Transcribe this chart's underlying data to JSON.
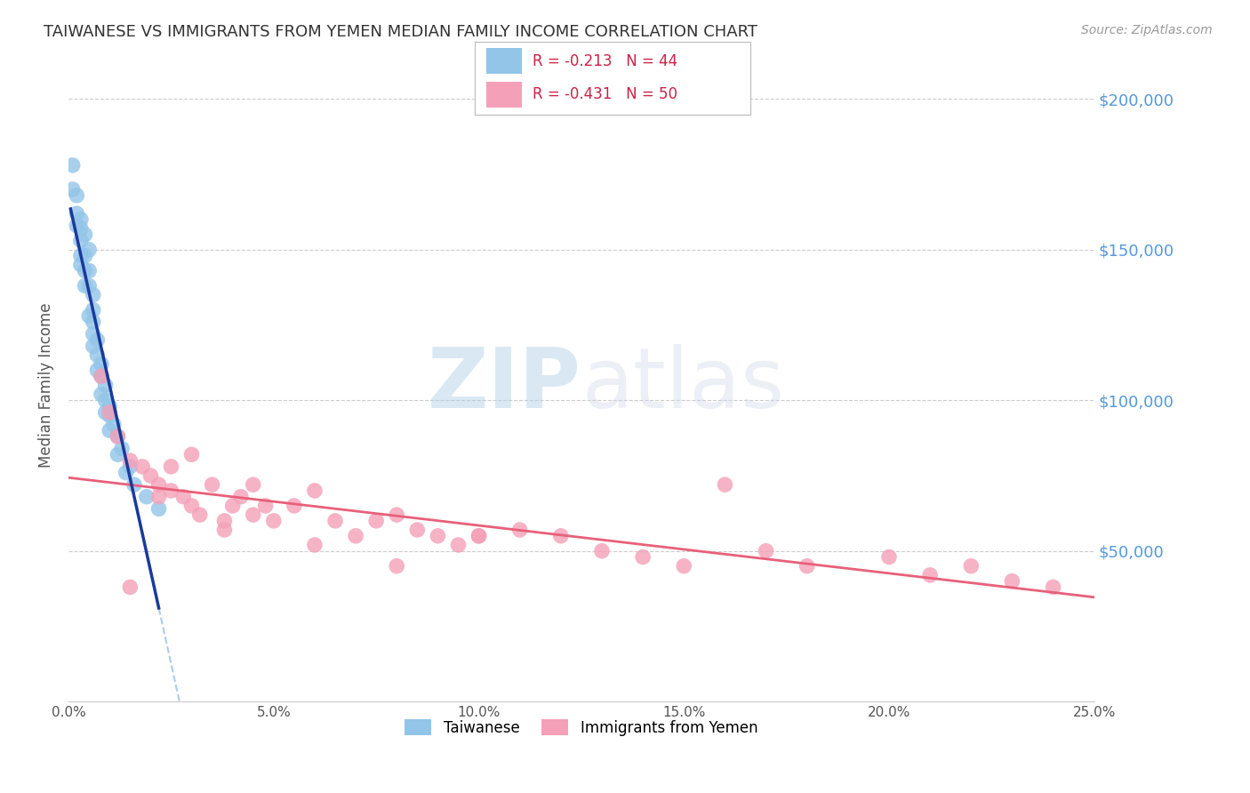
{
  "title": "TAIWANESE VS IMMIGRANTS FROM YEMEN MEDIAN FAMILY INCOME CORRELATION CHART",
  "source": "Source: ZipAtlas.com",
  "ylabel": "Median Family Income",
  "xlim": [
    0.0,
    0.25
  ],
  "ylim": [
    0,
    210000
  ],
  "xticks": [
    0.0,
    0.05,
    0.1,
    0.15,
    0.2,
    0.25
  ],
  "xticklabels": [
    "0.0%",
    "5.0%",
    "10.0%",
    "15.0%",
    "20.0%",
    "25.0%"
  ],
  "yticks_right": [
    200000,
    150000,
    100000,
    50000
  ],
  "yticklabels_right": [
    "$200,000",
    "$150,000",
    "$100,000",
    "$50,000"
  ],
  "watermark_zip": "ZIP",
  "watermark_atlas": "atlas",
  "legend_r1": "-0.213",
  "legend_n1": "44",
  "legend_r2": "-0.431",
  "legend_n2": "50",
  "color_taiwanese": "#92C5E8",
  "color_yemen": "#F4A0B8",
  "color_line_taiwanese": "#1A3A9C",
  "color_line_yemen": "#E8607A",
  "color_line_dash": "#AACCEE",
  "background_color": "#FFFFFF",
  "grid_color": "#CCCCCC",
  "title_color": "#333333",
  "right_axis_color": "#5599DD",
  "taiwanese_x": [
    0.001,
    0.001,
    0.002,
    0.002,
    0.003,
    0.003,
    0.003,
    0.003,
    0.004,
    0.004,
    0.004,
    0.005,
    0.005,
    0.005,
    0.006,
    0.006,
    0.006,
    0.006,
    0.007,
    0.007,
    0.008,
    0.008,
    0.009,
    0.009,
    0.01,
    0.01,
    0.011,
    0.012,
    0.013,
    0.015,
    0.002,
    0.003,
    0.004,
    0.005,
    0.006,
    0.007,
    0.008,
    0.009,
    0.01,
    0.012,
    0.014,
    0.016,
    0.019,
    0.022
  ],
  "taiwanese_y": [
    178000,
    170000,
    168000,
    162000,
    160000,
    157000,
    153000,
    148000,
    155000,
    148000,
    143000,
    150000,
    143000,
    138000,
    135000,
    130000,
    126000,
    122000,
    120000,
    115000,
    112000,
    108000,
    105000,
    100000,
    98000,
    95000,
    92000,
    88000,
    84000,
    78000,
    158000,
    145000,
    138000,
    128000,
    118000,
    110000,
    102000,
    96000,
    90000,
    82000,
    76000,
    72000,
    68000,
    64000
  ],
  "yemen_x": [
    0.008,
    0.01,
    0.012,
    0.015,
    0.018,
    0.02,
    0.022,
    0.025,
    0.025,
    0.028,
    0.03,
    0.03,
    0.032,
    0.035,
    0.038,
    0.04,
    0.042,
    0.045,
    0.045,
    0.048,
    0.05,
    0.055,
    0.06,
    0.065,
    0.07,
    0.075,
    0.08,
    0.085,
    0.09,
    0.095,
    0.1,
    0.11,
    0.12,
    0.13,
    0.14,
    0.15,
    0.16,
    0.17,
    0.18,
    0.2,
    0.21,
    0.22,
    0.23,
    0.24,
    0.015,
    0.022,
    0.038,
    0.06,
    0.08,
    0.1
  ],
  "yemen_y": [
    108000,
    96000,
    88000,
    80000,
    78000,
    75000,
    72000,
    78000,
    70000,
    68000,
    82000,
    65000,
    62000,
    72000,
    60000,
    65000,
    68000,
    72000,
    62000,
    65000,
    60000,
    65000,
    70000,
    60000,
    55000,
    60000,
    62000,
    57000,
    55000,
    52000,
    55000,
    57000,
    55000,
    50000,
    48000,
    45000,
    72000,
    50000,
    45000,
    48000,
    42000,
    45000,
    40000,
    38000,
    38000,
    68000,
    57000,
    52000,
    45000,
    55000
  ]
}
